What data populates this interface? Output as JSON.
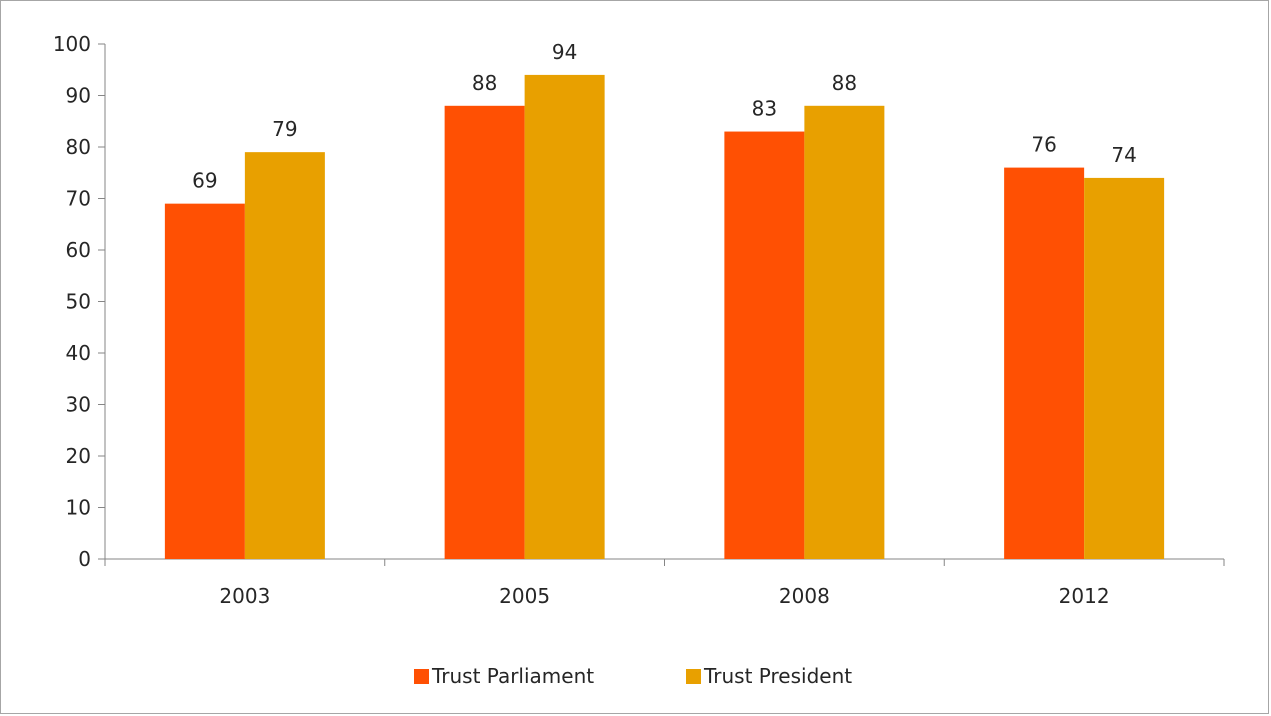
{
  "chart_data": {
    "type": "bar",
    "title": "",
    "xlabel": "",
    "ylabel": "",
    "categories": [
      "2003",
      "2005",
      "2008",
      "2012"
    ],
    "series": [
      {
        "name": "Trust Parliament",
        "values": [
          69,
          88,
          83,
          76
        ],
        "color": "#ff5003"
      },
      {
        "name": "Trust President",
        "values": [
          79,
          94,
          88,
          74
        ],
        "color": "#e8a000"
      }
    ],
    "ylim": [
      0,
      100
    ],
    "yticks": [
      0,
      10,
      20,
      30,
      40,
      50,
      60,
      70,
      80,
      90,
      100
    ],
    "grid": false,
    "data_labels": true,
    "legend": "bottom-center"
  }
}
